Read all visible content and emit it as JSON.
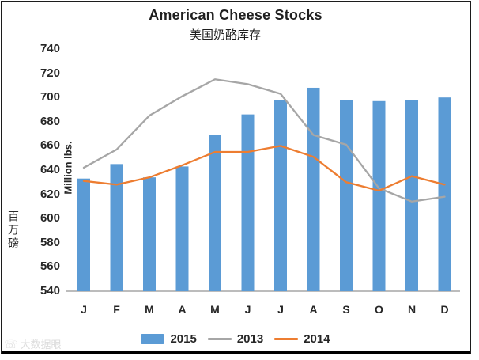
{
  "chart_data": {
    "type": "bar",
    "title": "American Cheese Stocks",
    "subtitle": "美国奶酪库存",
    "ylabel": "Million lbs.",
    "ylabel_cn": "百万磅",
    "categories": [
      "J",
      "F",
      "M",
      "A",
      "M",
      "J",
      "J",
      "A",
      "S",
      "O",
      "N",
      "D"
    ],
    "series": [
      {
        "name": "2015",
        "type": "bar",
        "color": "#5B9BD5",
        "values": [
          633,
          645,
          634,
          643,
          669,
          686,
          698,
          708,
          698,
          697,
          698,
          700
        ]
      },
      {
        "name": "2013",
        "type": "line",
        "color": "#A6A6A6",
        "values": [
          642,
          657,
          685,
          701,
          715,
          711,
          703,
          669,
          661,
          625,
          614,
          618
        ]
      },
      {
        "name": "2014",
        "type": "line",
        "color": "#ED7D31",
        "values": [
          631,
          628,
          634,
          644,
          655,
          655,
          660,
          651,
          630,
          623,
          635,
          628
        ]
      }
    ],
    "ylim": [
      540,
      740
    ],
    "ytick_step": 20,
    "grid": false,
    "legend_position": "bottom",
    "axis_line_color": "#A6A6A6"
  },
  "legend": {
    "items": [
      {
        "label": "2015",
        "swatch": "bar",
        "color": "#5B9BD5"
      },
      {
        "label": "2013",
        "swatch": "line",
        "color": "#A6A6A6"
      },
      {
        "label": "2014",
        "swatch": "line",
        "color": "#ED7D31"
      }
    ]
  },
  "watermark": {
    "text": "大数据眼"
  }
}
